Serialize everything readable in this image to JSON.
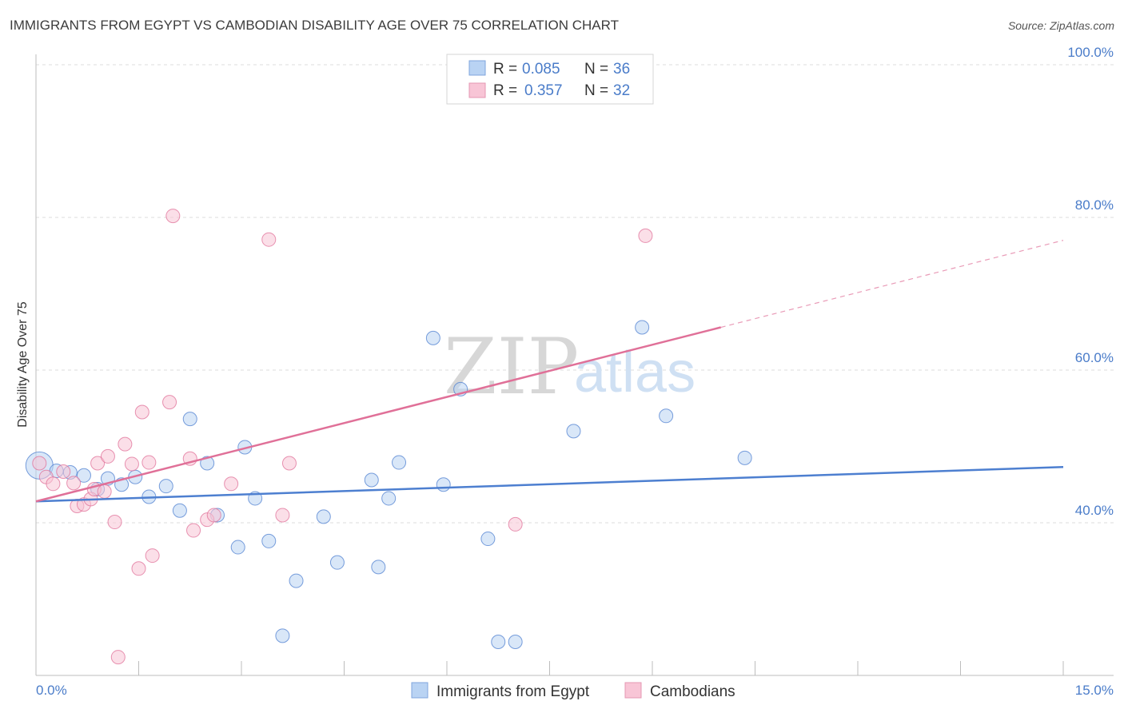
{
  "title": "IMMIGRANTS FROM EGYPT VS CAMBODIAN DISABILITY AGE OVER 75 CORRELATION CHART",
  "source": "Source: ZipAtlas.com",
  "watermark": {
    "zip": "ZIP",
    "atlas": "atlas"
  },
  "colors": {
    "blue": "#4d7fd0",
    "blue_fill": "#b9d3f3",
    "pink": "#e07098",
    "pink_fill": "#f8c5d6",
    "tick": "#4a7cc9"
  },
  "legend_top": [
    {
      "r_label": "R =",
      "r_value": "0.085",
      "n_label": "N =",
      "n_value": "36"
    },
    {
      "r_label": "R =",
      "r_value": "0.357",
      "n_label": "N =",
      "n_value": "32"
    }
  ],
  "chart_data": {
    "type": "scatter",
    "ylabel": "Disability Age Over 75",
    "xlim": [
      0,
      15
    ],
    "ylim": [
      20,
      100
    ],
    "x_tick_labels": [
      "0.0%",
      "15.0%"
    ],
    "y_ticks": [
      40,
      60,
      80,
      100
    ],
    "y_tick_labels": [
      "40.0%",
      "60.0%",
      "80.0%",
      "100.0%"
    ],
    "grid": true,
    "legend_position": "bottom",
    "series": [
      {
        "name": "Immigrants from Egypt",
        "color": "#4d7fd0",
        "fill": "#b9d3f3",
        "trend": {
          "x": [
            0,
            15
          ],
          "y": [
            42.8,
            47.3
          ],
          "dashed_from": null
        },
        "points": [
          [
            0.05,
            47.5
          ],
          [
            0.3,
            46.8
          ],
          [
            0.5,
            46.6
          ],
          [
            0.7,
            46.2
          ],
          [
            0.9,
            44.4
          ],
          [
            1.05,
            45.8
          ],
          [
            1.25,
            45.0
          ],
          [
            1.45,
            46.0
          ],
          [
            1.65,
            43.4
          ],
          [
            1.9,
            44.8
          ],
          [
            2.1,
            41.6
          ],
          [
            2.25,
            53.6
          ],
          [
            2.5,
            47.8
          ],
          [
            2.65,
            41.0
          ],
          [
            2.95,
            36.8
          ],
          [
            3.05,
            49.9
          ],
          [
            3.2,
            43.2
          ],
          [
            3.4,
            37.6
          ],
          [
            3.6,
            25.2
          ],
          [
            3.8,
            32.4
          ],
          [
            4.2,
            40.8
          ],
          [
            4.4,
            34.8
          ],
          [
            4.9,
            45.6
          ],
          [
            5.0,
            34.2
          ],
          [
            5.3,
            47.9
          ],
          [
            5.15,
            43.2
          ],
          [
            5.8,
            64.2
          ],
          [
            5.95,
            45.0
          ],
          [
            6.2,
            57.5
          ],
          [
            6.6,
            37.9
          ],
          [
            6.75,
            24.4
          ],
          [
            7.0,
            24.4
          ],
          [
            7.85,
            52.0
          ],
          [
            8.85,
            65.6
          ],
          [
            9.2,
            54.0
          ],
          [
            10.35,
            48.5
          ]
        ]
      },
      {
        "name": "Cambodians",
        "color": "#e07098",
        "fill": "#f8c5d6",
        "trend": {
          "x": [
            0,
            15
          ],
          "y": [
            42.8,
            77.0
          ],
          "dashed_from": 10.0
        },
        "points": [
          [
            0.05,
            47.8
          ],
          [
            0.15,
            46.0
          ],
          [
            0.25,
            45.1
          ],
          [
            0.4,
            46.7
          ],
          [
            0.55,
            45.2
          ],
          [
            0.6,
            42.2
          ],
          [
            0.7,
            42.4
          ],
          [
            0.8,
            43.1
          ],
          [
            0.85,
            44.4
          ],
          [
            0.9,
            47.8
          ],
          [
            1.0,
            44.1
          ],
          [
            1.05,
            48.7
          ],
          [
            1.15,
            40.1
          ],
          [
            1.3,
            50.3
          ],
          [
            1.4,
            47.7
          ],
          [
            1.5,
            34.0
          ],
          [
            1.55,
            54.5
          ],
          [
            1.65,
            47.9
          ],
          [
            1.7,
            35.7
          ],
          [
            1.2,
            22.4
          ],
          [
            1.95,
            55.8
          ],
          [
            2.0,
            80.2
          ],
          [
            2.25,
            48.4
          ],
          [
            2.3,
            39.0
          ],
          [
            2.5,
            40.4
          ],
          [
            2.6,
            41.0
          ],
          [
            2.85,
            45.1
          ],
          [
            3.4,
            77.1
          ],
          [
            3.6,
            41.0
          ],
          [
            3.7,
            47.8
          ],
          [
            7.0,
            39.8
          ],
          [
            8.9,
            77.6
          ]
        ]
      }
    ]
  }
}
